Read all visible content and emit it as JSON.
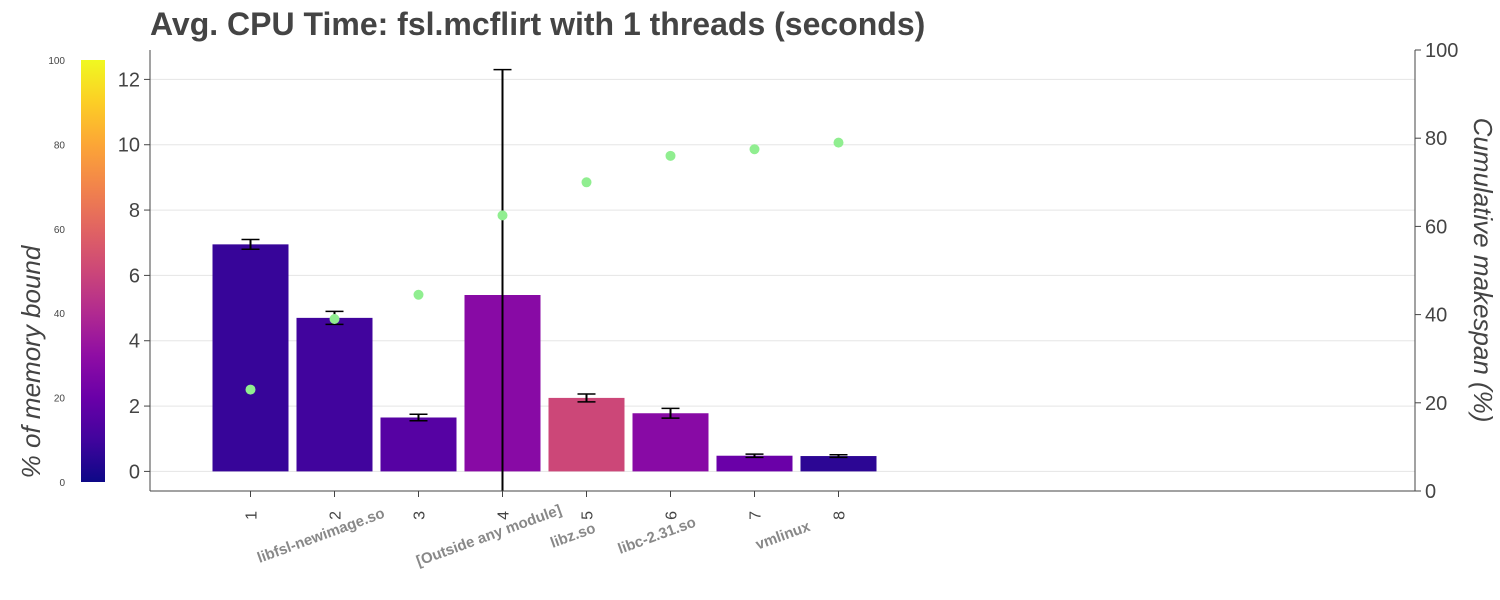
{
  "chart_data": {
    "type": "bar",
    "title": "Avg. CPU Time: fsl.mcflirt with 1 threads (seconds)",
    "ylabel_left": "% of memory bound",
    "ylabel_right": "Cumulative makespan (%)",
    "x_ticks": [
      "1",
      "2",
      "3",
      "4",
      "5",
      "6",
      "7",
      "8"
    ],
    "x": [
      1,
      2,
      3,
      4,
      5,
      6,
      7,
      8
    ],
    "bars": {
      "name": "Avg. CPU Time (seconds)",
      "values": [
        6.95,
        4.7,
        1.65,
        5.4,
        2.25,
        1.78,
        0.48,
        0.47
      ],
      "error": [
        0.15,
        0.2,
        0.1,
        6.9,
        0.12,
        0.15,
        0.05,
        0.04
      ],
      "memory_bound_pct": [
        8,
        10,
        15,
        28,
        50,
        28,
        20,
        6
      ]
    },
    "cumulative_makespan_pct": [
      23,
      39,
      44.5,
      62.5,
      70,
      76,
      77.5,
      79
    ],
    "ylim_left": [
      -0.6,
      12.9
    ],
    "yticks_left": [
      0,
      2,
      4,
      6,
      8,
      10,
      12
    ],
    "ylim_right": [
      0,
      100
    ],
    "yticks_right": [
      0,
      20,
      40,
      60,
      80,
      100
    ],
    "colorbar": {
      "range": [
        0,
        100
      ],
      "ticks": [
        0,
        20,
        40,
        60,
        80,
        100
      ]
    },
    "groups": [
      {
        "label": "libfsl-newimage.so",
        "center": 2
      },
      {
        "label": "[Outside any module]",
        "center": 4
      },
      {
        "label": "libz.so",
        "center": 5
      },
      {
        "label": "libc-2.31.so",
        "center": 6
      },
      {
        "label": "vmlinux",
        "center": 7.5
      }
    ],
    "colors": {
      "scatter": "#90ee90",
      "grid": "#e5e5e5",
      "axis": "#444444"
    }
  }
}
